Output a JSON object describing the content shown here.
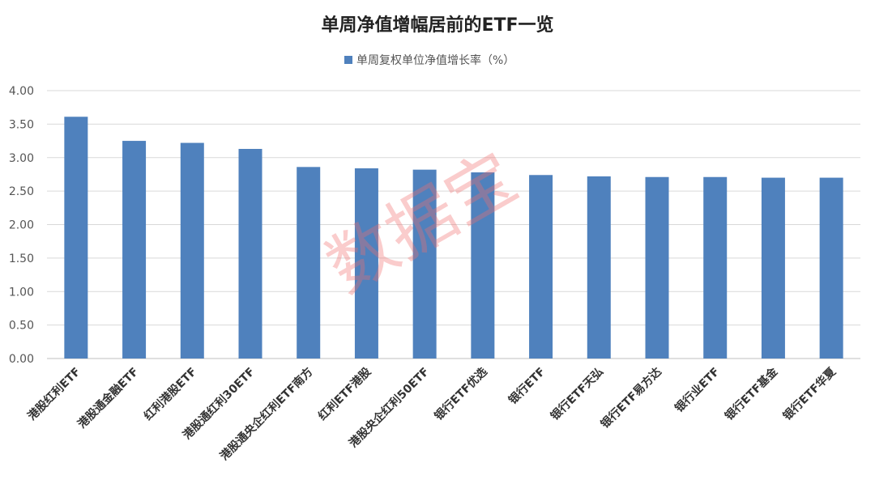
{
  "chart_data": {
    "type": "bar",
    "title": "单周净值增幅居前的ETF一览",
    "legend": "单周复权单位净值增长率（%）",
    "legend_position": "top",
    "watermark": "数据宝",
    "categories": [
      "港股红利ETF",
      "港股通金融ETF",
      "红利港股ETF",
      "港股通红利30ETF",
      "港股通央企红利ETF南方",
      "红利ETF港股",
      "港股央企红利50ETF",
      "银行ETF优选",
      "银行ETF",
      "银行ETF天弘",
      "银行ETF易方达",
      "银行业ETF",
      "银行ETF基金",
      "银行ETF华夏"
    ],
    "series": [
      {
        "name": "单周复权单位净值增长率（%）",
        "values": [
          3.61,
          3.25,
          3.22,
          3.13,
          2.86,
          2.84,
          2.82,
          2.78,
          2.74,
          2.72,
          2.71,
          2.71,
          2.7,
          2.7
        ]
      }
    ],
    "ylim": [
      0,
      4
    ],
    "yticks": [
      "0.00",
      "0.50",
      "1.00",
      "1.50",
      "2.00",
      "2.50",
      "3.00",
      "3.50",
      "4.00"
    ],
    "grid": true,
    "bar_color": "#4f81bd"
  }
}
